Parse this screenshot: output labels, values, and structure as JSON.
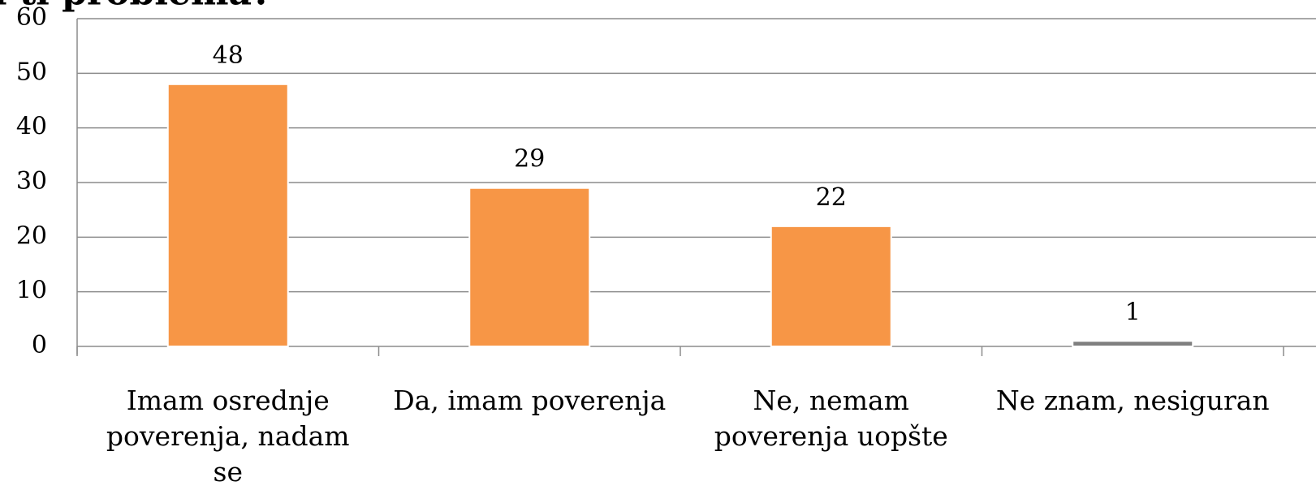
{
  "chart_data": {
    "type": "bar",
    "title": "a ti problema?",
    "categories": [
      "Imam osrednje poverenja, nadam se",
      "Da, imam poverenja",
      "Ne, nemam poverenja uopšte",
      "Ne znam, nesiguran"
    ],
    "values": [
      48,
      29,
      22,
      1
    ],
    "colors": [
      "#f79646",
      "#f79646",
      "#f79646",
      "#7f7f7f"
    ],
    "ylim": [
      0,
      60
    ],
    "yticks": [
      0,
      10,
      20,
      30,
      40,
      50,
      60
    ],
    "grid": true
  }
}
